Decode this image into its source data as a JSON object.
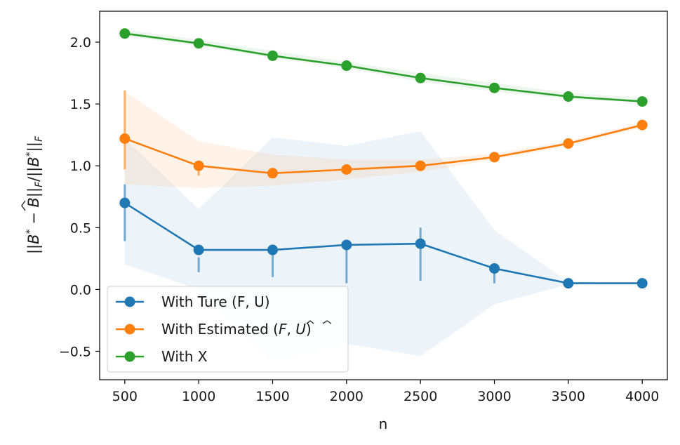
{
  "chart_data": {
    "type": "line",
    "xlabel": "n",
    "ylabel_latex": "||B* − B̂||F / ||B*||F",
    "x": [
      500,
      1000,
      1500,
      2000,
      2500,
      3000,
      3500,
      4000
    ],
    "x_ticks": [
      "500",
      "1000",
      "1500",
      "2000",
      "2500",
      "3000",
      "3500",
      "4000"
    ],
    "y_ticks": [
      "−0.5",
      "0.0",
      "0.5",
      "1.0",
      "1.5",
      "2.0"
    ],
    "y_tick_values": [
      -0.5,
      0.0,
      0.5,
      1.0,
      1.5,
      2.0
    ],
    "xlim": [
      330,
      4170
    ],
    "ylim": [
      -0.73,
      2.25
    ],
    "grid": false,
    "legend_position": "lower-left",
    "series": [
      {
        "name": "With Ture (F, U)",
        "color": "#1f77b4",
        "values": [
          0.7,
          0.32,
          0.32,
          0.36,
          0.37,
          0.17,
          0.05,
          0.05
        ],
        "band_upper": [
          1.22,
          0.65,
          1.23,
          1.16,
          1.28,
          0.48,
          0.06,
          0.05
        ],
        "band_lower": [
          0.2,
          0.0,
          -0.58,
          -0.44,
          -0.54,
          -0.12,
          0.04,
          0.05
        ],
        "err_upper": [
          0.85,
          0.26,
          0.35,
          0.38,
          0.5,
          0.2,
          0.05,
          0.05
        ],
        "err_lower": [
          0.39,
          0.14,
          0.1,
          0.05,
          0.07,
          0.05,
          0.05,
          0.05
        ]
      },
      {
        "name": "With Estimated",
        "color": "#ff7f0e",
        "values": [
          1.22,
          1.0,
          0.94,
          0.97,
          1.0,
          1.07,
          1.18,
          1.33
        ],
        "band_upper": [
          1.6,
          1.2,
          1.09,
          1.05,
          1.05,
          1.1,
          1.2,
          1.35
        ],
        "band_lower": [
          0.85,
          0.82,
          0.84,
          0.89,
          0.95,
          1.05,
          1.16,
          1.31
        ],
        "err_upper": [
          1.61,
          1.02,
          0.96,
          0.99,
          1.02,
          1.09,
          1.2,
          1.35
        ],
        "err_lower": [
          0.97,
          0.92,
          0.92,
          0.95,
          0.98,
          1.05,
          1.16,
          1.31
        ]
      },
      {
        "name": "With X",
        "color": "#2ca02c",
        "values": [
          2.07,
          1.99,
          1.89,
          1.81,
          1.71,
          1.63,
          1.56,
          1.52
        ],
        "band_upper": [
          2.1,
          2.02,
          1.93,
          1.84,
          1.75,
          1.67,
          1.59,
          1.55
        ],
        "band_lower": [
          2.05,
          1.97,
          1.87,
          1.79,
          1.68,
          1.6,
          1.54,
          1.51
        ],
        "err_upper": [
          2.08,
          2.0,
          1.9,
          1.82,
          1.72,
          1.64,
          1.57,
          1.53
        ],
        "err_lower": [
          2.06,
          1.98,
          1.88,
          1.8,
          1.7,
          1.62,
          1.55,
          1.51
        ]
      }
    ],
    "legend": [
      {
        "label": "With Ture (F, U)",
        "color": "#1f77b4"
      },
      {
        "label": "With Estimated (F̂, Û)",
        "label_prefix": "With Estimated (",
        "f": "F",
        "u": "U",
        "color": "#ff7f0e"
      },
      {
        "label": "With X",
        "color": "#2ca02c"
      }
    ]
  }
}
